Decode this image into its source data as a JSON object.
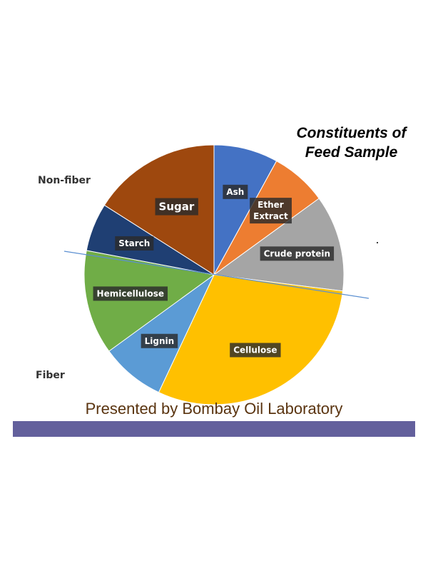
{
  "page": {
    "title_lines": [
      "Constituents of",
      "Feed Sample"
    ],
    "footer": "Presented by Bombay Oil Laboratory",
    "footer_bar_color": "#63609c"
  },
  "chart_data": {
    "type": "pie",
    "title": "Constituents of Feed Sample",
    "start_angle_deg": 0,
    "direction": "clockwise",
    "slices": [
      {
        "label": "Ash",
        "value": 8,
        "color": "#4472c4",
        "label_style": "small"
      },
      {
        "label": "Ether\nExtract",
        "value": 7,
        "color": "#ed7d31",
        "label_style": "small"
      },
      {
        "label": "Crude protein",
        "value": 12,
        "color": "#a5a5a5",
        "label_style": "small"
      },
      {
        "label": "Cellulose",
        "value": 30,
        "color": "#ffc000",
        "label_style": "small"
      },
      {
        "label": "Lignin",
        "value": 8,
        "color": "#5b9bd5",
        "label_style": "small"
      },
      {
        "label": "Hemicellulose",
        "value": 13,
        "color": "#70ad47",
        "label_style": "small"
      },
      {
        "label": "Starch",
        "value": 6,
        "color": "#1f3f73",
        "label_style": "small"
      },
      {
        "label": "Sugar",
        "value": 16,
        "color": "#9e480e",
        "label_style": "large"
      }
    ],
    "groups": [
      {
        "label": "Non-fiber"
      },
      {
        "label": "Fiber"
      }
    ],
    "divider_color": "#5b8fd1",
    "legend": "none"
  }
}
